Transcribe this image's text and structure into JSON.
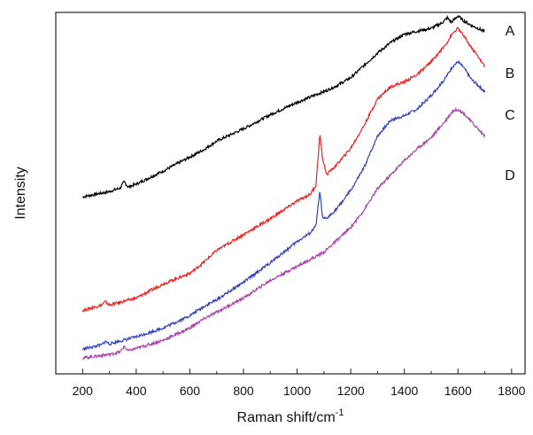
{
  "chart_data": {
    "type": "line",
    "title": "",
    "xlabel": "Raman shift/cm",
    "xlabel_superscript": "-1",
    "ylabel": "Intensity",
    "xlim": [
      100,
      1850
    ],
    "ylim": [
      0,
      1
    ],
    "x_ticks": [
      200,
      400,
      600,
      800,
      1000,
      1200,
      1400,
      1600,
      1800
    ],
    "y_ticks_shown": false,
    "grid": false,
    "legend": "none",
    "series": [
      {
        "name": "A",
        "color": "#000000",
        "x": [
          200,
          300,
          340,
          355,
          370,
          400,
          500,
          600,
          650,
          700,
          800,
          900,
          1000,
          1050,
          1080,
          1100,
          1150,
          1200,
          1250,
          1300,
          1350,
          1400,
          1450,
          1500,
          1540,
          1560,
          1575,
          1600,
          1620,
          1650,
          1680,
          1700
        ],
        "y": [
          0.492,
          0.507,
          0.517,
          0.535,
          0.52,
          0.528,
          0.565,
          0.605,
          0.625,
          0.65,
          0.685,
          0.725,
          0.76,
          0.775,
          0.785,
          0.79,
          0.808,
          0.83,
          0.865,
          0.9,
          0.93,
          0.953,
          0.962,
          0.97,
          0.985,
          1.0,
          0.987,
          1.005,
          0.992,
          0.978,
          0.968,
          0.96
        ]
      },
      {
        "name": "B",
        "color": "#ee2222",
        "x": [
          200,
          270,
          285,
          300,
          400,
          500,
          600,
          650,
          700,
          800,
          900,
          950,
          1000,
          1050,
          1070,
          1080,
          1085,
          1095,
          1110,
          1150,
          1200,
          1250,
          1300,
          1350,
          1400,
          1450,
          1500,
          1550,
          1580,
          1600,
          1620,
          1650,
          1680,
          1700
        ],
        "y": [
          0.17,
          0.185,
          0.195,
          0.185,
          0.205,
          0.245,
          0.275,
          0.305,
          0.34,
          0.385,
          0.43,
          0.455,
          0.48,
          0.5,
          0.525,
          0.62,
          0.67,
          0.6,
          0.555,
          0.585,
          0.63,
          0.695,
          0.77,
          0.805,
          0.818,
          0.84,
          0.875,
          0.92,
          0.955,
          0.97,
          0.95,
          0.915,
          0.885,
          0.86
        ]
      },
      {
        "name": "C",
        "color": "#3344bb",
        "x": [
          200,
          270,
          285,
          300,
          400,
          500,
          600,
          650,
          700,
          800,
          900,
          950,
          1000,
          1050,
          1070,
          1080,
          1085,
          1095,
          1110,
          1150,
          1200,
          1250,
          1300,
          1350,
          1400,
          1450,
          1500,
          1550,
          1580,
          1600,
          1620,
          1650,
          1680,
          1700
        ],
        "y": [
          0.06,
          0.072,
          0.082,
          0.075,
          0.095,
          0.12,
          0.155,
          0.18,
          0.2,
          0.25,
          0.305,
          0.335,
          0.365,
          0.39,
          0.41,
          0.475,
          0.51,
          0.43,
          0.43,
          0.46,
          0.51,
          0.575,
          0.665,
          0.71,
          0.722,
          0.742,
          0.78,
          0.825,
          0.862,
          0.875,
          0.86,
          0.825,
          0.805,
          0.79
        ]
      },
      {
        "name": "D",
        "color": "#aa44aa",
        "x": [
          200,
          300,
          340,
          355,
          370,
          400,
          500,
          600,
          650,
          700,
          800,
          900,
          1000,
          1050,
          1100,
          1150,
          1200,
          1250,
          1300,
          1350,
          1400,
          1450,
          1500,
          1550,
          1580,
          1600,
          1620,
          1650,
          1680,
          1700
        ],
        "y": [
          0.035,
          0.045,
          0.052,
          0.068,
          0.055,
          0.062,
          0.085,
          0.12,
          0.145,
          0.165,
          0.205,
          0.255,
          0.295,
          0.315,
          0.335,
          0.37,
          0.405,
          0.455,
          0.515,
          0.555,
          0.595,
          0.63,
          0.66,
          0.705,
          0.735,
          0.74,
          0.73,
          0.705,
          0.68,
          0.665
        ]
      }
    ],
    "series_labels": [
      "A",
      "B",
      "C",
      "D"
    ]
  }
}
